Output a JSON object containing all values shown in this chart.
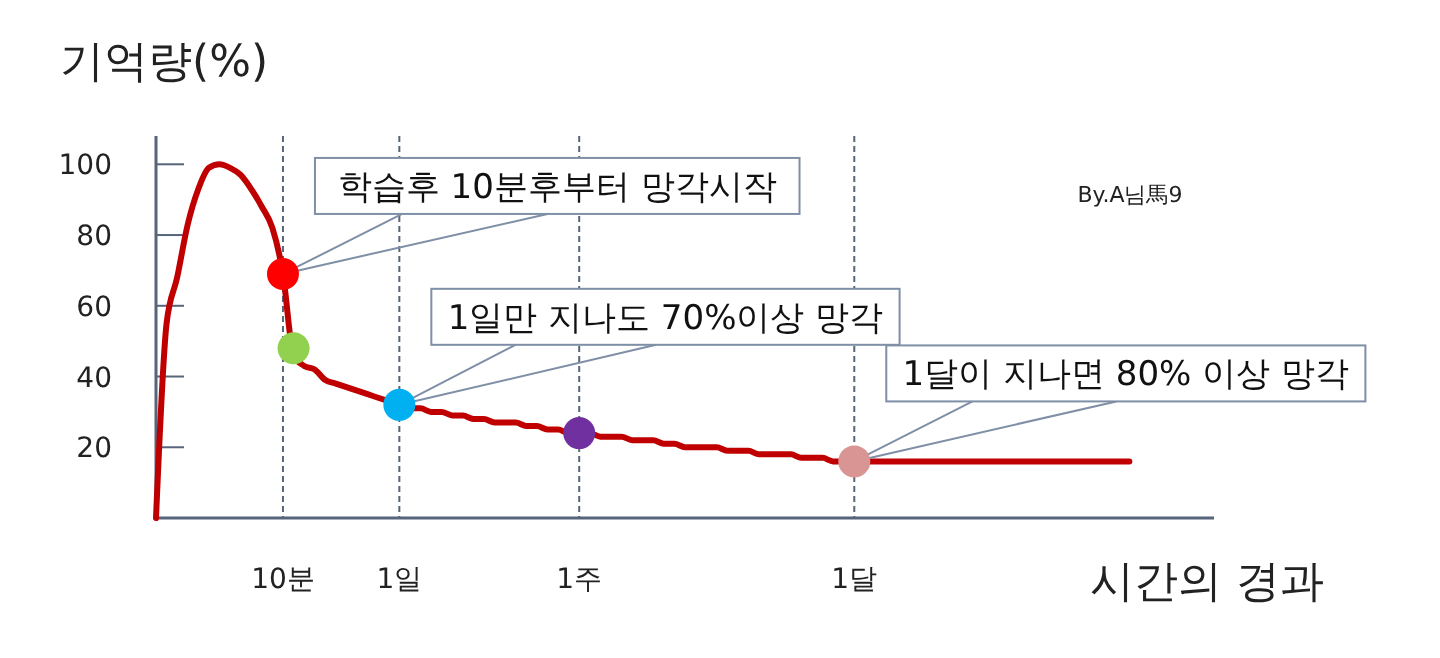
{
  "chart_data": {
    "type": "line",
    "xlabel": "시간의 경과",
    "ylabel": "기억량(%)",
    "categories": [
      null,
      null,
      null,
      null,
      null,
      null,
      null,
      null,
      null,
      null,
      null,
      null,
      "10분",
      null,
      null,
      null,
      null,
      null,
      null,
      null,
      null,
      null,
      null,
      "1일",
      null,
      null,
      null,
      null,
      null,
      null,
      null,
      null,
      null,
      null,
      null,
      null,
      null,
      null,
      null,
      null,
      "1주",
      null,
      null,
      null,
      null,
      null,
      null,
      null,
      null,
      null,
      null,
      null,
      null,
      null,
      null,
      null,
      null,
      null,
      null,
      null,
      null,
      null,
      null,
      null,
      null,
      null,
      "1달",
      null,
      null,
      null,
      null,
      null,
      null,
      null,
      null,
      null,
      null,
      null,
      null,
      null,
      null,
      null,
      null,
      null,
      null,
      null,
      null,
      null,
      null,
      null,
      null,
      null,
      null
    ],
    "ylim": [
      0,
      108
    ],
    "yticks": [
      20,
      40,
      60,
      80,
      100
    ],
    "grid": "x",
    "series": [
      {
        "type": "line",
        "color": "#c00000",
        "values": [
          0,
          55,
          68,
          83,
          93,
          99,
          100,
          99,
          97,
          93,
          88,
          82,
          69,
          46,
          43,
          42,
          39,
          38,
          37,
          36,
          35,
          34,
          33,
          32,
          31,
          31,
          30,
          30,
          29,
          29,
          28,
          28,
          27,
          27,
          27,
          26,
          26,
          25,
          25,
          24,
          24,
          24,
          23,
          23,
          23,
          22,
          22,
          22,
          21,
          21,
          20,
          20,
          20,
          20,
          19,
          19,
          19,
          18,
          18,
          18,
          18,
          17,
          17,
          17,
          16,
          16,
          16,
          16,
          16,
          16,
          16,
          16,
          16,
          16,
          16,
          16,
          16,
          16,
          16,
          16,
          16,
          16,
          16,
          16,
          16,
          16,
          16,
          16,
          16,
          16,
          16,
          16,
          16
        ]
      },
      {
        "type": "scatter",
        "color": "#ff0000",
        "values": [
          null,
          null,
          null,
          null,
          null,
          null,
          null,
          null,
          null,
          null,
          null,
          null,
          69,
          null,
          null,
          null,
          null,
          null,
          null,
          null,
          null,
          null,
          null,
          null,
          null,
          null,
          null,
          null,
          null,
          null,
          null,
          null,
          null,
          null,
          null,
          null,
          null,
          null,
          null,
          null,
          null,
          null,
          null,
          null,
          null,
          null,
          null,
          null,
          null,
          null,
          null,
          null,
          null,
          null,
          null,
          null,
          null,
          null,
          null,
          null,
          null,
          null,
          null,
          null,
          null,
          null,
          null,
          null,
          null,
          null,
          null,
          null,
          null,
          null,
          null,
          null,
          null,
          null,
          null,
          null,
          null,
          null,
          null,
          null,
          null,
          null,
          null,
          null,
          null,
          null,
          null,
          null,
          null
        ]
      },
      {
        "type": "scatter",
        "color": "#92d050",
        "values": [
          null,
          null,
          null,
          null,
          null,
          null,
          null,
          null,
          null,
          null,
          null,
          null,
          null,
          48,
          null,
          null,
          null,
          null,
          null,
          null,
          null,
          null,
          null,
          null,
          null,
          null,
          null,
          null,
          null,
          null,
          null,
          null,
          null,
          null,
          null,
          null,
          null,
          null,
          null,
          null,
          null,
          null,
          null,
          null,
          null,
          null,
          null,
          null,
          null,
          null,
          null,
          null,
          null,
          null,
          null,
          null,
          null,
          null,
          null,
          null,
          null,
          null,
          null,
          null,
          null,
          null,
          null,
          null,
          null,
          null,
          null,
          null,
          null,
          null,
          null,
          null,
          null,
          null,
          null,
          null,
          null,
          null,
          null,
          null,
          null,
          null,
          null,
          null,
          null,
          null,
          null,
          null,
          null
        ]
      },
      {
        "type": "scatter",
        "color": "#00b0f0",
        "values": [
          null,
          null,
          null,
          null,
          null,
          null,
          null,
          null,
          null,
          null,
          null,
          null,
          null,
          null,
          null,
          null,
          null,
          null,
          null,
          null,
          null,
          null,
          null,
          32,
          null,
          null,
          null,
          null,
          null,
          null,
          null,
          null,
          null,
          null,
          null,
          null,
          null,
          null,
          null,
          null,
          null,
          null,
          null,
          null,
          null,
          null,
          null,
          null,
          null,
          null,
          null,
          null,
          null,
          null,
          null,
          null,
          null,
          null,
          null,
          null,
          null,
          null,
          null,
          null,
          null,
          null,
          null,
          null,
          null,
          null,
          null,
          null,
          null,
          null,
          null,
          null,
          null,
          null,
          null,
          null,
          null,
          null,
          null,
          null,
          null,
          null,
          null,
          null,
          null,
          null,
          null,
          null,
          null
        ]
      },
      {
        "type": "scatter",
        "color": "#7030a0",
        "values": [
          null,
          null,
          null,
          null,
          null,
          null,
          null,
          null,
          null,
          null,
          null,
          null,
          null,
          null,
          null,
          null,
          null,
          null,
          null,
          null,
          null,
          null,
          null,
          null,
          null,
          null,
          null,
          null,
          null,
          null,
          null,
          null,
          null,
          null,
          null,
          null,
          null,
          null,
          null,
          null,
          24,
          null,
          null,
          null,
          null,
          null,
          null,
          null,
          null,
          null,
          null,
          null,
          null,
          null,
          null,
          null,
          null,
          null,
          null,
          null,
          null,
          null,
          null,
          null,
          null,
          null,
          null,
          null,
          null,
          null,
          null,
          null,
          null,
          null,
          null,
          null,
          null,
          null,
          null,
          null,
          null,
          null,
          null,
          null,
          null,
          null,
          null,
          null,
          null,
          null,
          null,
          null,
          null
        ]
      },
      {
        "type": "scatter",
        "color": "#d99594",
        "values": [
          null,
          null,
          null,
          null,
          null,
          null,
          null,
          null,
          null,
          null,
          null,
          null,
          null,
          null,
          null,
          null,
          null,
          null,
          null,
          null,
          null,
          null,
          null,
          null,
          null,
          null,
          null,
          null,
          null,
          null,
          null,
          null,
          null,
          null,
          null,
          null,
          null,
          null,
          null,
          null,
          null,
          null,
          null,
          null,
          null,
          null,
          null,
          null,
          null,
          null,
          null,
          null,
          null,
          null,
          null,
          null,
          null,
          null,
          null,
          null,
          null,
          null,
          null,
          null,
          null,
          null,
          16,
          null,
          null,
          null,
          null,
          null,
          null,
          null,
          null,
          null,
          null,
          null,
          null,
          null,
          null,
          null,
          null,
          null,
          null,
          null,
          null,
          null,
          null,
          null,
          null,
          null,
          null
        ]
      }
    ],
    "annotations": [
      {
        "text": "학습후 10분후부터 망각시작",
        "x": "10분",
        "y": 69
      },
      {
        "text": "1일만 지나도 70%이상 망각",
        "x": "1일",
        "y": 32
      },
      {
        "text": "1달이 지나면 80% 이상 망각",
        "x": "1달",
        "y": 16
      },
      "By.A님馬9"
    ]
  }
}
